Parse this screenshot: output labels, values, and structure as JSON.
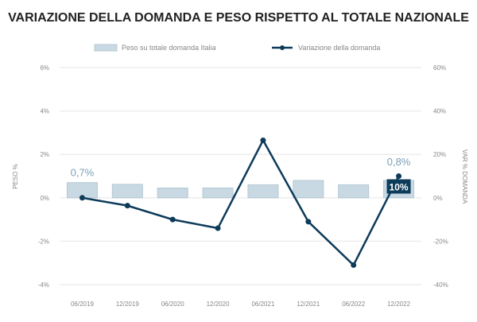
{
  "chart_data": {
    "type": "bar+line",
    "title": "VARIAZIONE DELLA DOMANDA E PESO RISPETTO AL TOTALE NAZIONALE",
    "categories": [
      "06/2019",
      "12/2019",
      "06/2020",
      "12/2020",
      "06/2021",
      "12/2021",
      "06/2022",
      "12/2022"
    ],
    "series": [
      {
        "name": "Peso su totale domanda Italia",
        "type": "bar",
        "axis": "left",
        "color": "#c9d9e3",
        "values": [
          0.7,
          0.62,
          0.45,
          0.45,
          0.6,
          0.8,
          0.6,
          0.8
        ]
      },
      {
        "name": "Variazione della domanda",
        "type": "line",
        "axis": "right",
        "color": "#0d3b5a",
        "values": [
          0,
          -3.6,
          -10,
          -14,
          26.5,
          -11,
          -31,
          10
        ]
      }
    ],
    "ylabel": "PESO %",
    "y2label": "VAR % DOMANDA",
    "ylim": [
      -4,
      6
    ],
    "y2lim": [
      -40,
      60
    ],
    "yticks": [
      "6%",
      "4%",
      "2%",
      "0%",
      "-2%",
      "-4%"
    ],
    "y2ticks": [
      "60%",
      "40%",
      "20%",
      "0%",
      "-20%",
      "-40%"
    ],
    "annotations": {
      "first_bar": "0,7%",
      "last_bar": "0,8%",
      "last_line": "10%"
    },
    "legend_position": "top",
    "grid": true
  }
}
